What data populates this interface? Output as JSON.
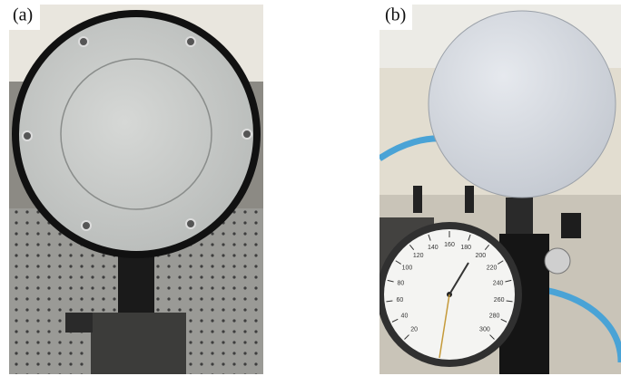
{
  "panels": [
    {
      "label": "(a)"
    },
    {
      "label": "(b)",
      "gauge_scale": [
        "20",
        "40",
        "60",
        "80",
        "100",
        "120",
        "140",
        "160",
        "180",
        "200",
        "220",
        "240",
        "260",
        "280",
        "300"
      ]
    }
  ]
}
